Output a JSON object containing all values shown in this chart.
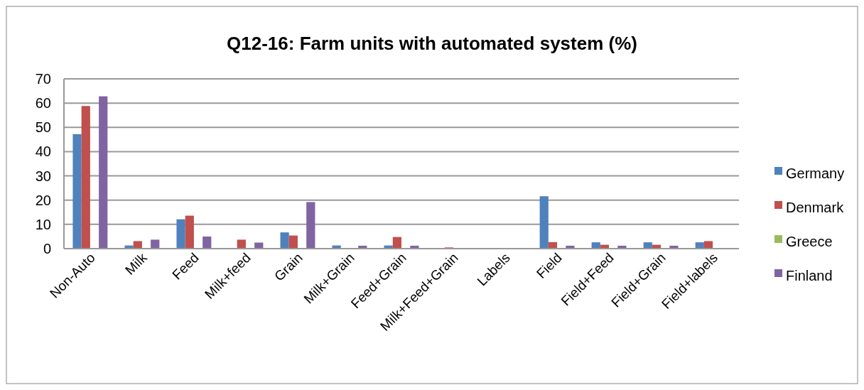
{
  "chart_data": {
    "type": "bar",
    "title": "Q12-16: Farm units with automated system (%)",
    "categories": [
      "Non-Auto",
      "Milk",
      "Feed",
      "Milk+feed",
      "Grain",
      "Milk+Grain",
      "Feed+Grain",
      "Milk+Feed+Grain",
      "Labels",
      "Field",
      "Field+Feed",
      "Field+Grain",
      "Field+labels"
    ],
    "series": [
      {
        "name": "Germany",
        "color": "#4f81bd",
        "values": [
          47.2,
          1.3,
          12.1,
          0,
          6.7,
          1.3,
          1.3,
          0,
          0,
          21.6,
          2.6,
          2.6,
          2.6
        ]
      },
      {
        "name": "Denmark",
        "color": "#c0504d",
        "values": [
          58.8,
          3.1,
          13.6,
          3.7,
          5.4,
          0,
          4.8,
          0.5,
          0,
          2.7,
          1.6,
          1.6,
          3.1
        ]
      },
      {
        "name": "Greece",
        "color": "#9bbb59",
        "values": [
          0,
          0,
          0,
          0,
          0,
          0,
          0,
          0,
          0,
          0,
          0,
          0,
          0
        ]
      },
      {
        "name": "Finland",
        "color": "#8064a2",
        "values": [
          62.8,
          3.7,
          5.0,
          2.5,
          19.2,
          1.2,
          1.2,
          0,
          0,
          1.2,
          1.2,
          1.2,
          0
        ]
      }
    ],
    "ylim": [
      0,
      70
    ],
    "yticks": [
      0,
      10,
      20,
      30,
      40,
      50,
      60,
      70
    ],
    "grid": "y",
    "legend": "right"
  }
}
